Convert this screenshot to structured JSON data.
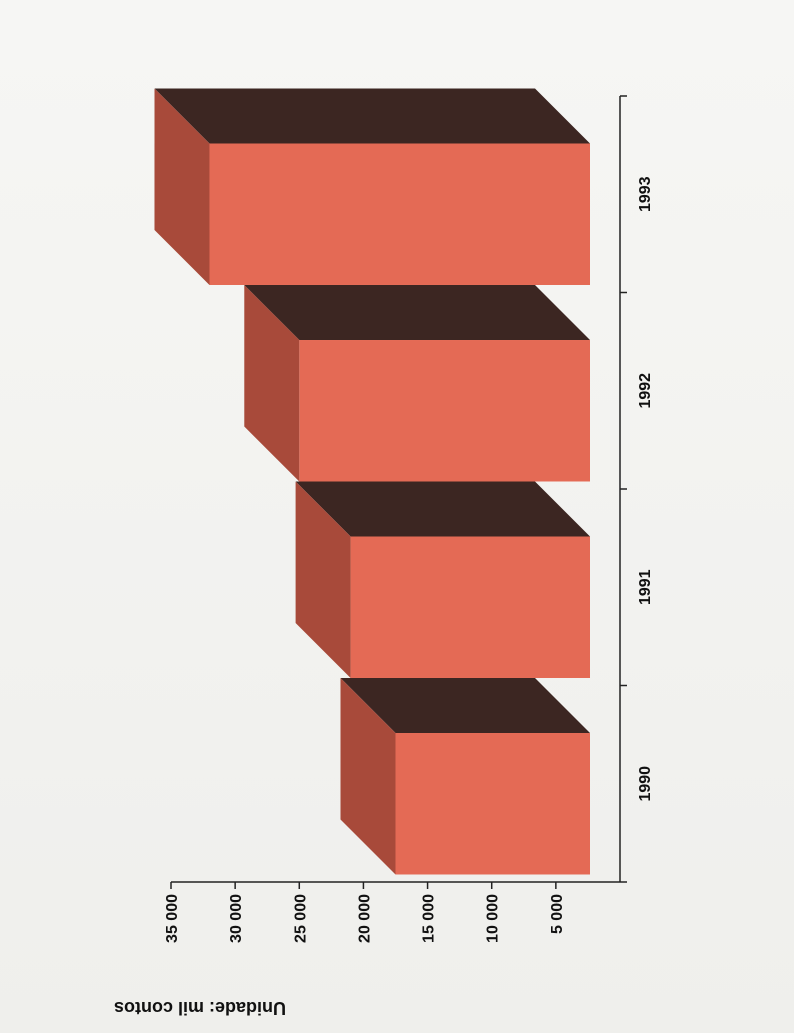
{
  "chart_data": {
    "type": "bar",
    "orientation": "rotated-180",
    "categories": [
      "1990",
      "1991",
      "1992",
      "1993"
    ],
    "values": [
      17500,
      21000,
      25000,
      32000
    ],
    "ylabel": "Unidade: mil contos",
    "yticks": [
      5000,
      10000,
      15000,
      20000,
      25000,
      30000,
      35000
    ],
    "ytick_labels": [
      "5 000",
      "10 000",
      "15 000",
      "20 000",
      "25 000",
      "30 000",
      "35 000"
    ],
    "ylim": [
      0,
      35000
    ],
    "grid": false,
    "legend": "none",
    "style": "3d",
    "colors": {
      "front": "#e46a55",
      "side": "#a84a3a",
      "top": "#3c2622",
      "axis": "#222222"
    }
  }
}
